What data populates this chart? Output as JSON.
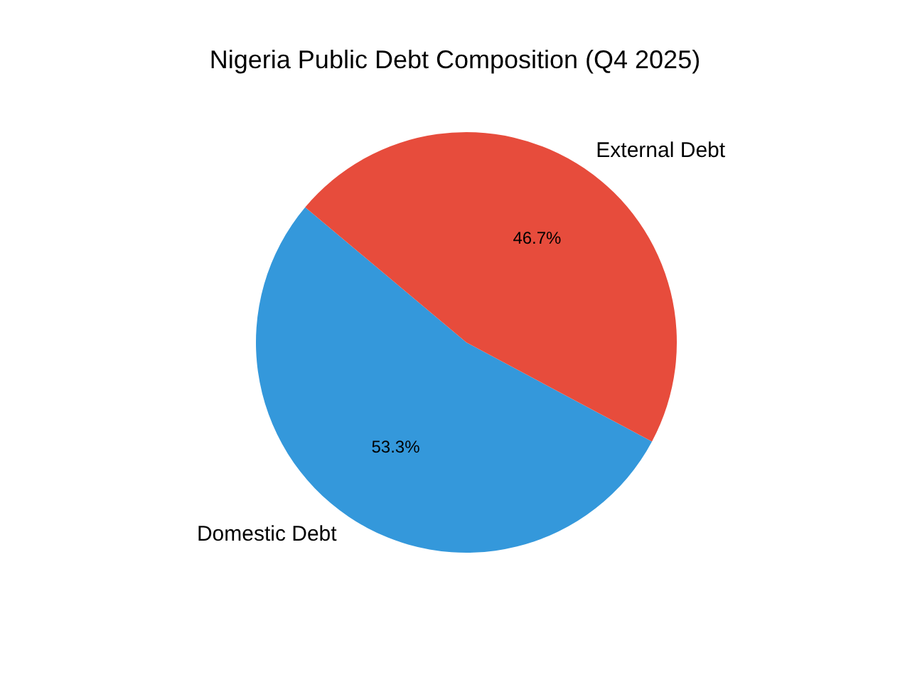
{
  "chart_data": {
    "type": "pie",
    "title": "Nigeria Public Debt Composition (Q4 2025)",
    "categories": [
      "Domestic Debt",
      "External Debt"
    ],
    "values": [
      53.3,
      46.7
    ],
    "colors": [
      "#3498db",
      "#e74c3c"
    ],
    "value_labels": [
      "53.3%",
      "46.7%"
    ]
  }
}
